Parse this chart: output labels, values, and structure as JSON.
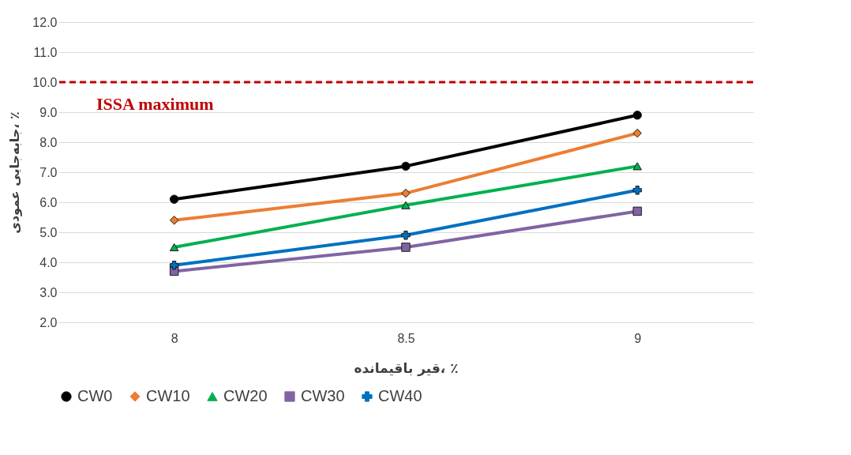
{
  "chart_data": {
    "type": "line",
    "xlabel": "قیر باقیمانده، ٪",
    "ylabel": "جابه‌جایی عمودی، ٪",
    "categories": [
      "8",
      "8.5",
      "9"
    ],
    "series": [
      {
        "name": "CW0",
        "color": "#000000",
        "marker": "circle",
        "values": [
          6.1,
          7.2,
          8.9
        ]
      },
      {
        "name": "CW10",
        "color": "#ed7d31",
        "marker": "diamond",
        "values": [
          5.4,
          6.3,
          8.3
        ]
      },
      {
        "name": "CW20",
        "color": "#00b050",
        "marker": "triangle",
        "values": [
          4.5,
          5.9,
          7.2
        ]
      },
      {
        "name": "CW30",
        "color": "#8064a2",
        "marker": "square",
        "values": [
          3.7,
          4.5,
          5.7
        ]
      },
      {
        "name": "CW40",
        "color": "#0070c0",
        "marker": "cross",
        "values": [
          3.9,
          4.9,
          6.4
        ]
      }
    ],
    "ylim": [
      2,
      12
    ],
    "yticks": [
      {
        "value": 2,
        "label": "2.0"
      },
      {
        "value": 3,
        "label": "3.0"
      },
      {
        "value": 4,
        "label": "4.0"
      },
      {
        "value": 5,
        "label": "5.0"
      },
      {
        "value": 6,
        "label": "6.0"
      },
      {
        "value": 7,
        "label": "7.0"
      },
      {
        "value": 8,
        "label": "8.0"
      },
      {
        "value": 9,
        "label": "9.0"
      },
      {
        "value": 10,
        "label": "10.0"
      },
      {
        "value": 11,
        "label": "11.0"
      },
      {
        "value": 12,
        "label": "12.0"
      }
    ],
    "ref_lines": [
      {
        "axis": "y",
        "value": 10,
        "label": "ISSA maximum",
        "color": "#c00000",
        "line_style": "dashed"
      }
    ],
    "grid": "y",
    "legend": "bottom",
    "line_style": "solid"
  }
}
